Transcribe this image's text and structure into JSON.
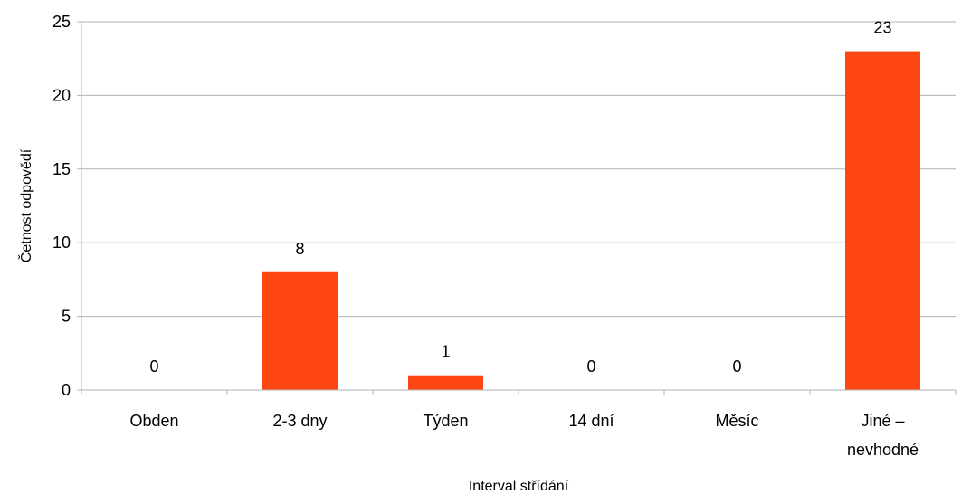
{
  "chart_data": {
    "type": "bar",
    "categories": [
      "Obden",
      "2-3 dny",
      "Týden",
      "14 dní",
      "Měsíc",
      "Jiné – nevhodné"
    ],
    "category_lines": [
      [
        "Obden"
      ],
      [
        "2-3 dny"
      ],
      [
        "Týden"
      ],
      [
        "14 dní"
      ],
      [
        "Měsíc"
      ],
      [
        "Jiné –",
        "nevhodné"
      ]
    ],
    "values": [
      0,
      8,
      1,
      0,
      0,
      23
    ],
    "data_labels": [
      "0",
      "8",
      "1",
      "0",
      "0",
      "23"
    ],
    "title": "",
    "xlabel": "Interval střídání",
    "ylabel": "Četnost odpovědí",
    "ylim": [
      0,
      25
    ],
    "yticks": [
      0,
      5,
      10,
      15,
      20,
      25
    ],
    "ytick_labels": [
      "0",
      "5",
      "10",
      "15",
      "20",
      "25"
    ],
    "grid": true,
    "legend": "none",
    "bar_color": "#ff4713",
    "grid_color": "#b3b3b3"
  }
}
